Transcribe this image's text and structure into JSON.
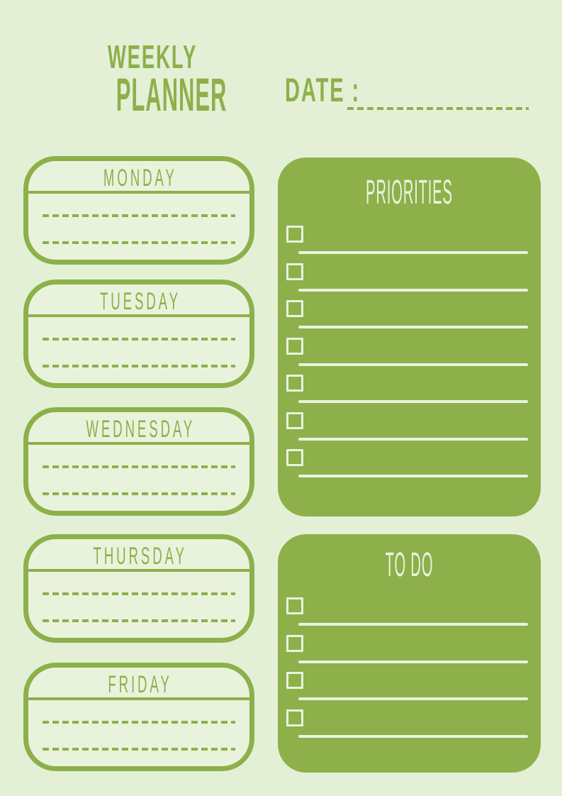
{
  "header": {
    "title_line1": "WEEKLY",
    "title_line2": "PLANNER",
    "date_label": "DATE :",
    "date_value": ""
  },
  "days": [
    {
      "label": "MONDAY",
      "note_lines": [
        "",
        ""
      ]
    },
    {
      "label": "TUESDAY",
      "note_lines": [
        "",
        ""
      ]
    },
    {
      "label": "WEDNESDAY",
      "note_lines": [
        "",
        ""
      ]
    },
    {
      "label": "THURSDAY",
      "note_lines": [
        "",
        ""
      ]
    },
    {
      "label": "FRIDAY",
      "note_lines": [
        "",
        ""
      ]
    }
  ],
  "priorities": {
    "title": "PRIORITIES",
    "items": [
      "",
      "",
      "",
      "",
      "",
      "",
      ""
    ],
    "checked": [
      false,
      false,
      false,
      false,
      false,
      false,
      false
    ]
  },
  "todo": {
    "title": "TO DO",
    "items": [
      "",
      "",
      "",
      ""
    ],
    "checked": [
      false,
      false,
      false,
      false
    ]
  },
  "colors": {
    "accent": "#8db04b",
    "background": "#e4f0d6",
    "card_fill": "#e9f3dc",
    "panel_text": "#e8f4dd"
  }
}
